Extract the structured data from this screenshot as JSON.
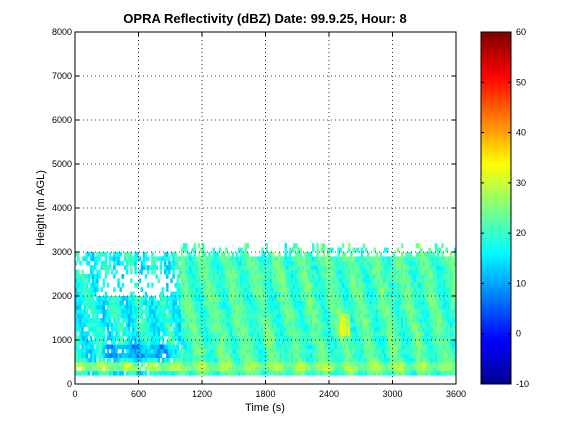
{
  "chart_data": {
    "type": "heatmap",
    "title": "OPRA Reflectivity (dBZ)  Date: 99.9.25, Hour: 8",
    "xlabel": "Time (s)",
    "ylabel": "Height (m AGL)",
    "xlim": [
      0,
      3600
    ],
    "ylim": [
      0,
      8000
    ],
    "x_ticks": [
      "0",
      "600",
      "1200",
      "1800",
      "2400",
      "3000",
      "3600"
    ],
    "y_ticks": [
      "0",
      "1000",
      "2000",
      "3000",
      "4000",
      "5000",
      "6000",
      "7000",
      "8000"
    ],
    "grid": "dotted",
    "colorbar": {
      "range": [
        -10,
        60
      ],
      "ticks": [
        "-10",
        "0",
        "10",
        "20",
        "30",
        "40",
        "50",
        "60"
      ],
      "colormap": "jet"
    },
    "echo_regions": [
      {
        "t_start": 0,
        "t_end": 1000,
        "h_bottom": 250,
        "h_top": 3000,
        "dBZ_typical": 18,
        "note": "fragmented echo with gaps near 2000-2500 m"
      },
      {
        "t_start": 250,
        "t_end": 950,
        "h_bottom": 600,
        "h_top": 850,
        "dBZ_typical": 12,
        "note": "weaker layer"
      },
      {
        "t_start": 1000,
        "t_end": 3600,
        "h_bottom": 250,
        "h_top": 3000,
        "dBZ_typical": 22,
        "note": "continuous echo, tops to ~3300 m"
      },
      {
        "t_start": 2500,
        "t_end": 2600,
        "h_bottom": 1100,
        "h_top": 1600,
        "dBZ_typical": 30,
        "note": "local maximum"
      },
      {
        "t_start": 0,
        "t_end": 3600,
        "h_bottom": 250,
        "h_top": 450,
        "dBZ_typical": 26,
        "note": "near-surface layer"
      }
    ]
  }
}
